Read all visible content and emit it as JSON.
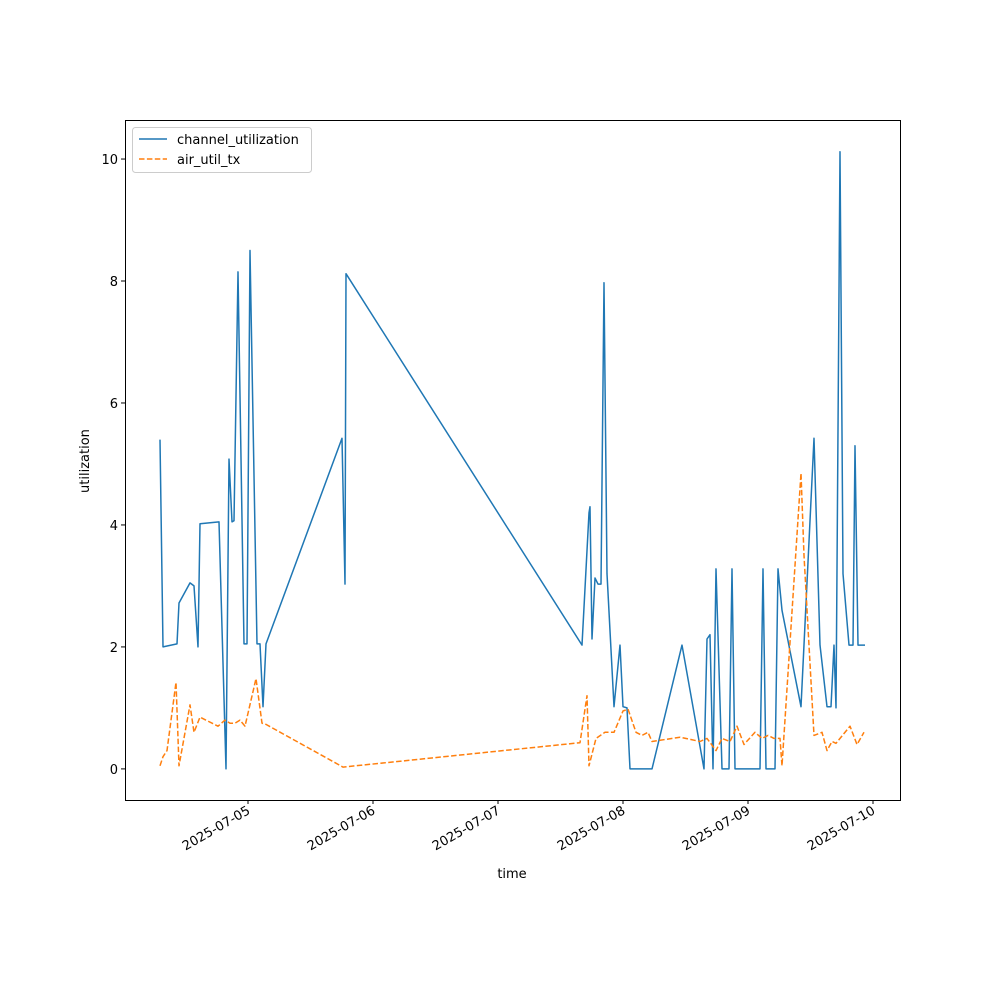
{
  "chart_data": {
    "type": "line",
    "title": "",
    "xlabel": "time",
    "ylabel": "utilization",
    "x_units": "days offset from 2025-07-05 00:00",
    "xlim": [
      -0.984,
      5.216
    ],
    "ylim": [
      -0.51,
      10.64
    ],
    "x_ticks": [
      0,
      1,
      2,
      3,
      4,
      5
    ],
    "x_tick_labels": [
      "2025-07-05",
      "2025-07-06",
      "2025-07-07",
      "2025-07-08",
      "2025-07-09",
      "2025-07-10"
    ],
    "y_ticks": [
      0,
      2,
      4,
      6,
      8,
      10
    ],
    "y_tick_labels": [
      "0",
      "2",
      "4",
      "6",
      "8",
      "10"
    ],
    "grid": false,
    "legend_position": "top-left",
    "series": [
      {
        "name": "channel_utilization",
        "color": "#1f77b4",
        "style": "solid",
        "x": [
          -0.704,
          -0.68,
          -0.568,
          -0.552,
          -0.464,
          -0.432,
          -0.4,
          -0.384,
          -0.232,
          -0.176,
          -0.152,
          -0.128,
          -0.112,
          -0.08,
          -0.032,
          -0.008,
          0.016,
          0.072,
          0.096,
          0.12,
          0.144,
          0.752,
          0.776,
          0.784,
          2.672,
          2.728,
          2.736,
          2.752,
          2.776,
          2.8,
          2.824,
          2.848,
          2.872,
          2.928,
          2.976,
          3.0,
          3.032,
          3.056,
          3.232,
          3.472,
          3.648,
          3.672,
          3.696,
          3.72,
          3.744,
          3.792,
          3.848,
          3.872,
          3.896,
          4.096,
          4.12,
          4.144,
          4.216,
          4.24,
          4.272,
          4.424,
          4.528,
          4.576,
          4.632,
          4.664,
          4.688,
          4.704,
          4.736,
          4.76,
          4.808,
          4.84,
          4.856,
          4.88,
          4.936
        ],
        "y": [
          5.4,
          2.0,
          2.05,
          2.72,
          3.05,
          3.0,
          2.0,
          4.02,
          4.05,
          0,
          5.08,
          4.05,
          4.07,
          8.15,
          2.05,
          2.05,
          8.5,
          2.05,
          2.05,
          1.02,
          2.05,
          5.42,
          3.03,
          8.12,
          2.03,
          4.2,
          4.3,
          2.13,
          3.13,
          3.03,
          3.03,
          7.97,
          3.2,
          1.02,
          2.03,
          1.02,
          1.0,
          0,
          0,
          2.03,
          0,
          2.13,
          2.2,
          0,
          3.28,
          0,
          0,
          3.28,
          0,
          0,
          3.28,
          0,
          0,
          3.28,
          2.6,
          1.02,
          5.42,
          2.03,
          1.02,
          1.02,
          2.03,
          1.0,
          10.12,
          3.2,
          2.03,
          2.03,
          5.3,
          2.03,
          2.03
        ]
      },
      {
        "name": "air_util_tx",
        "color": "#ff7f0e",
        "style": "dashed",
        "x": [
          -0.704,
          -0.68,
          -0.648,
          -0.576,
          -0.552,
          -0.464,
          -0.432,
          -0.384,
          -0.24,
          -0.184,
          -0.144,
          -0.12,
          -0.104,
          -0.064,
          -0.024,
          0.064,
          0.112,
          0.144,
          0.76,
          2.656,
          2.712,
          2.728,
          2.784,
          2.856,
          2.928,
          3.0,
          3.04,
          3.104,
          3.152,
          3.2,
          3.232,
          3.456,
          3.616,
          3.672,
          3.744,
          3.792,
          3.856,
          3.912,
          3.968,
          4.056,
          4.112,
          4.16,
          4.208,
          4.256,
          4.272,
          4.424,
          4.448,
          4.528,
          4.592,
          4.632,
          4.672,
          4.704,
          4.816,
          4.872,
          4.928
        ],
        "y": [
          0.05,
          0.2,
          0.3,
          1.42,
          0.05,
          1.05,
          0.6,
          0.85,
          0.7,
          0.8,
          0.75,
          0.75,
          0.75,
          0.8,
          0.7,
          1.48,
          0.75,
          0.73,
          0.03,
          0.43,
          1.2,
          0.05,
          0.5,
          0.6,
          0.6,
          0.95,
          0.98,
          0.6,
          0.55,
          0.6,
          0.45,
          0.52,
          0.45,
          0.5,
          0.3,
          0.5,
          0.45,
          0.7,
          0.4,
          0.6,
          0.5,
          0.55,
          0.5,
          0.5,
          0.05,
          4.85,
          3.5,
          0.55,
          0.6,
          0.3,
          0.45,
          0.42,
          0.7,
          0.4,
          0.6
        ]
      }
    ]
  }
}
